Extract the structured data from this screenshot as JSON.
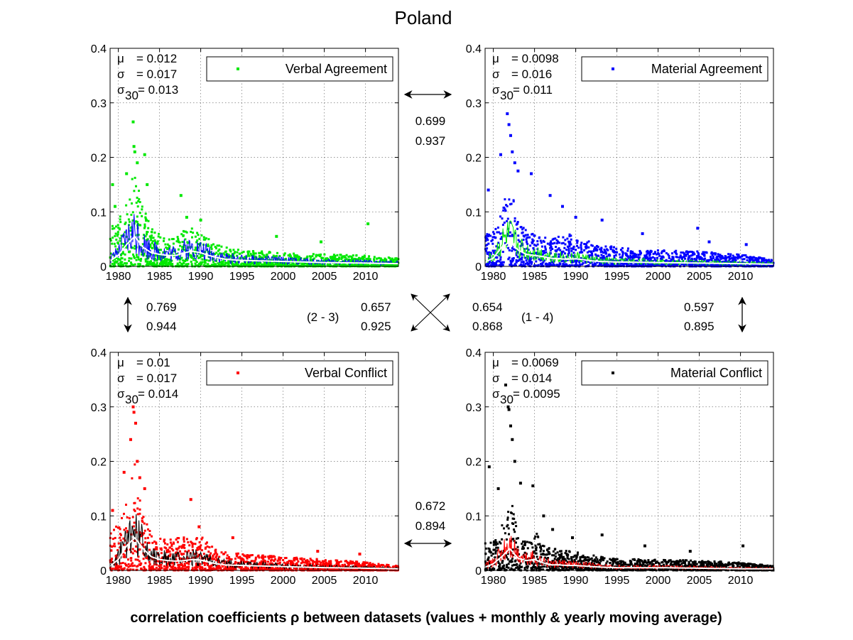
{
  "figure": {
    "title": "Poland",
    "xlabel": "correlation coefficients ρ between datasets (values + monthly & yearly moving average)"
  },
  "chart_data": [
    {
      "type": "scatter",
      "legend": "Verbal Agreement",
      "legend_position": "top-right",
      "color": "#00e800",
      "overlay_color": "#0000ff",
      "avg_color": "#ffffff",
      "stats": {
        "mu_label": "μ",
        "mu_value": "= 0.012",
        "sigma_label": "σ",
        "sigma_value": "= 0.017",
        "sigma30_label": "σ",
        "sigma30_sub": "30",
        "sigma30_value": "= 0.013"
      },
      "xlim": [
        1979,
        2014
      ],
      "ylim": [
        0,
        0.4
      ],
      "xticks": [
        "1980",
        "1985",
        "1990",
        "1995",
        "2000",
        "2005",
        "2010"
      ],
      "yticks": [
        "0",
        "0.1",
        "0.2",
        "0.3",
        "0.4"
      ],
      "grid": true,
      "envelope": [
        [
          1979,
          0.07
        ],
        [
          1980,
          0.085
        ],
        [
          1981,
          0.12
        ],
        [
          1982,
          0.19
        ],
        [
          1983,
          0.11
        ],
        [
          1984,
          0.07
        ],
        [
          1985,
          0.06
        ],
        [
          1986,
          0.05
        ],
        [
          1987,
          0.06
        ],
        [
          1988,
          0.065
        ],
        [
          1989,
          0.07
        ],
        [
          1990,
          0.06
        ],
        [
          1991,
          0.05
        ],
        [
          1992,
          0.04
        ],
        [
          1993,
          0.035
        ],
        [
          1995,
          0.03
        ],
        [
          2000,
          0.025
        ],
        [
          2005,
          0.022
        ],
        [
          2010,
          0.02
        ],
        [
          2014,
          0.015
        ]
      ],
      "moving_average": [
        [
          1979,
          0.01
        ],
        [
          1980,
          0.02
        ],
        [
          1981,
          0.04
        ],
        [
          1982,
          0.055
        ],
        [
          1983,
          0.035
        ],
        [
          1984,
          0.025
        ],
        [
          1985,
          0.022
        ],
        [
          1986,
          0.02
        ],
        [
          1987,
          0.02
        ],
        [
          1988,
          0.025
        ],
        [
          1989,
          0.028
        ],
        [
          1990,
          0.025
        ],
        [
          1991,
          0.02
        ],
        [
          1992,
          0.016
        ],
        [
          1993,
          0.013
        ],
        [
          1995,
          0.011
        ],
        [
          2000,
          0.009
        ],
        [
          2005,
          0.007
        ],
        [
          2010,
          0.006
        ],
        [
          2014,
          0.005
        ]
      ],
      "outliers": [
        [
          1979.3,
          0.15
        ],
        [
          1979.6,
          0.11
        ],
        [
          1981.0,
          0.17
        ],
        [
          1981.8,
          0.265
        ],
        [
          1981.9,
          0.22
        ],
        [
          1982.0,
          0.21
        ],
        [
          1982.3,
          0.19
        ],
        [
          1983.2,
          0.205
        ],
        [
          1983.5,
          0.15
        ],
        [
          1987.6,
          0.13
        ],
        [
          1988.3,
          0.09
        ],
        [
          1990.0,
          0.085
        ],
        [
          1999.2,
          0.055
        ],
        [
          2004.6,
          0.045
        ],
        [
          2010.3,
          0.078
        ]
      ]
    },
    {
      "type": "scatter",
      "legend": "Material Agreement",
      "legend_position": "top-right",
      "color": "#0000ff",
      "overlay_color": "#00e800",
      "avg_color": "#ffffff",
      "stats": {
        "mu_label": "μ",
        "mu_value": "= 0.0098",
        "sigma_label": "σ",
        "sigma_value": "= 0.016",
        "sigma30_label": "σ",
        "sigma30_sub": "30",
        "sigma30_value": "= 0.011"
      },
      "xlim": [
        1979,
        2014
      ],
      "ylim": [
        0,
        0.4
      ],
      "xticks": [
        "1980",
        "1985",
        "1990",
        "1995",
        "2000",
        "2005",
        "2010"
      ],
      "yticks": [
        "0",
        "0.1",
        "0.2",
        "0.3",
        "0.4"
      ],
      "grid": true,
      "envelope": [
        [
          1979,
          0.06
        ],
        [
          1980,
          0.075
        ],
        [
          1981,
          0.1
        ],
        [
          1982,
          0.17
        ],
        [
          1983,
          0.09
        ],
        [
          1984,
          0.065
        ],
        [
          1985,
          0.06
        ],
        [
          1986,
          0.055
        ],
        [
          1987,
          0.05
        ],
        [
          1988,
          0.055
        ],
        [
          1989,
          0.06
        ],
        [
          1990,
          0.055
        ],
        [
          1991,
          0.05
        ],
        [
          1992,
          0.045
        ],
        [
          1993,
          0.04
        ],
        [
          1995,
          0.035
        ],
        [
          2000,
          0.03
        ],
        [
          2005,
          0.028
        ],
        [
          2010,
          0.022
        ],
        [
          2014,
          0.012
        ]
      ],
      "moving_average": [
        [
          1979,
          0.008
        ],
        [
          1980,
          0.015
        ],
        [
          1981,
          0.035
        ],
        [
          1982,
          0.045
        ],
        [
          1983,
          0.03
        ],
        [
          1984,
          0.022
        ],
        [
          1985,
          0.02
        ],
        [
          1986,
          0.018
        ],
        [
          1987,
          0.015
        ],
        [
          1988,
          0.014
        ],
        [
          1989,
          0.013
        ],
        [
          1990,
          0.014
        ],
        [
          1991,
          0.012
        ],
        [
          1992,
          0.01
        ],
        [
          1993,
          0.009
        ],
        [
          1995,
          0.008
        ],
        [
          2000,
          0.007
        ],
        [
          2005,
          0.006
        ],
        [
          2010,
          0.005
        ],
        [
          2014,
          0.004
        ]
      ],
      "outliers": [
        [
          1979.4,
          0.14
        ],
        [
          1980.9,
          0.205
        ],
        [
          1981.7,
          0.28
        ],
        [
          1981.9,
          0.26
        ],
        [
          1982.1,
          0.24
        ],
        [
          1982.3,
          0.21
        ],
        [
          1982.6,
          0.19
        ],
        [
          1983.0,
          0.175
        ],
        [
          1984.6,
          0.17
        ],
        [
          1986.9,
          0.13
        ],
        [
          1988.4,
          0.11
        ],
        [
          1990.0,
          0.09
        ],
        [
          1993.2,
          0.085
        ],
        [
          1998.1,
          0.06
        ],
        [
          2004.8,
          0.07
        ],
        [
          2006.2,
          0.045
        ],
        [
          2010.7,
          0.04
        ]
      ]
    },
    {
      "type": "scatter",
      "legend": "Verbal Conflict",
      "legend_position": "top-right",
      "color": "#ff0000",
      "overlay_color": "#000000",
      "avg_color": "#ffffff",
      "stats": {
        "mu_label": "μ",
        "mu_value": "= 0.01",
        "sigma_label": "σ",
        "sigma_value": "= 0.017",
        "sigma30_label": "σ",
        "sigma30_sub": "30",
        "sigma30_value": "= 0.014"
      },
      "xlim": [
        1979,
        2014
      ],
      "ylim": [
        0,
        0.4
      ],
      "xticks": [
        "1980",
        "1985",
        "1990",
        "1995",
        "2000",
        "2005",
        "2010"
      ],
      "yticks": [
        "0",
        "0.1",
        "0.2",
        "0.3",
        "0.4"
      ],
      "grid": true,
      "envelope": [
        [
          1979,
          0.07
        ],
        [
          1980,
          0.09
        ],
        [
          1981,
          0.15
        ],
        [
          1982,
          0.2
        ],
        [
          1983,
          0.1
        ],
        [
          1984,
          0.07
        ],
        [
          1985,
          0.06
        ],
        [
          1986,
          0.055
        ],
        [
          1987,
          0.06
        ],
        [
          1988,
          0.065
        ],
        [
          1989,
          0.075
        ],
        [
          1990,
          0.065
        ],
        [
          1991,
          0.05
        ],
        [
          1992,
          0.04
        ],
        [
          1993,
          0.035
        ],
        [
          1995,
          0.03
        ],
        [
          2000,
          0.025
        ],
        [
          2005,
          0.02
        ],
        [
          2010,
          0.015
        ],
        [
          2014,
          0.008
        ]
      ],
      "moving_average": [
        [
          1979,
          0.008
        ],
        [
          1980,
          0.02
        ],
        [
          1981,
          0.045
        ],
        [
          1982,
          0.06
        ],
        [
          1983,
          0.04
        ],
        [
          1984,
          0.025
        ],
        [
          1985,
          0.02
        ],
        [
          1986,
          0.018
        ],
        [
          1987,
          0.017
        ],
        [
          1988,
          0.018
        ],
        [
          1989,
          0.02
        ],
        [
          1990,
          0.019
        ],
        [
          1991,
          0.015
        ],
        [
          1992,
          0.012
        ],
        [
          1993,
          0.01
        ],
        [
          1995,
          0.009
        ],
        [
          2000,
          0.007
        ],
        [
          2005,
          0.005
        ],
        [
          2010,
          0.004
        ],
        [
          2014,
          0.003
        ]
      ],
      "outliers": [
        [
          1979.3,
          0.11
        ],
        [
          1980.7,
          0.18
        ],
        [
          1981.5,
          0.24
        ],
        [
          1981.8,
          0.3
        ],
        [
          1981.9,
          0.29
        ],
        [
          1982.1,
          0.27
        ],
        [
          1982.3,
          0.2
        ],
        [
          1982.6,
          0.17
        ],
        [
          1983.2,
          0.15
        ],
        [
          1988.8,
          0.13
        ],
        [
          1989.8,
          0.08
        ],
        [
          1993.9,
          0.06
        ],
        [
          2004.2,
          0.035
        ],
        [
          2009.3,
          0.03
        ]
      ]
    },
    {
      "type": "scatter",
      "legend": "Material Conflict",
      "legend_position": "top-right",
      "color": "#000000",
      "overlay_color": "#ff0000",
      "avg_color": "#ffffff",
      "stats": {
        "mu_label": "μ",
        "mu_value": "= 0.0069",
        "sigma_label": "σ",
        "sigma_value": "= 0.014",
        "sigma30_label": "σ",
        "sigma30_sub": "30",
        "sigma30_value": "= 0.0095"
      },
      "xlim": [
        1979,
        2014
      ],
      "ylim": [
        0,
        0.4
      ],
      "xticks": [
        "1980",
        "1985",
        "1990",
        "1995",
        "2000",
        "2005",
        "2010"
      ],
      "yticks": [
        "0",
        "0.1",
        "0.2",
        "0.3",
        "0.4"
      ],
      "grid": true,
      "envelope": [
        [
          1979,
          0.05
        ],
        [
          1980,
          0.06
        ],
        [
          1981,
          0.08
        ],
        [
          1982,
          0.14
        ],
        [
          1983,
          0.07
        ],
        [
          1984,
          0.05
        ],
        [
          1985,
          0.075
        ],
        [
          1986,
          0.05
        ],
        [
          1987,
          0.04
        ],
        [
          1988,
          0.04
        ],
        [
          1989,
          0.035
        ],
        [
          1990,
          0.035
        ],
        [
          1991,
          0.03
        ],
        [
          1992,
          0.028
        ],
        [
          1993,
          0.025
        ],
        [
          1995,
          0.022
        ],
        [
          2000,
          0.02
        ],
        [
          2005,
          0.018
        ],
        [
          2010,
          0.015
        ],
        [
          2014,
          0.008
        ]
      ],
      "moving_average": [
        [
          1979,
          0.006
        ],
        [
          1980,
          0.012
        ],
        [
          1981,
          0.025
        ],
        [
          1982,
          0.04
        ],
        [
          1983,
          0.022
        ],
        [
          1984,
          0.018
        ],
        [
          1985,
          0.02
        ],
        [
          1986,
          0.014
        ],
        [
          1987,
          0.01
        ],
        [
          1988,
          0.01
        ],
        [
          1989,
          0.009
        ],
        [
          1990,
          0.009
        ],
        [
          1991,
          0.008
        ],
        [
          1992,
          0.007
        ],
        [
          1993,
          0.006
        ],
        [
          1995,
          0.005
        ],
        [
          2000,
          0.005
        ],
        [
          2005,
          0.004
        ],
        [
          2010,
          0.003
        ],
        [
          2014,
          0.003
        ]
      ],
      "outliers": [
        [
          1979.5,
          0.19
        ],
        [
          1980.6,
          0.15
        ],
        [
          1981.5,
          0.34
        ],
        [
          1981.8,
          0.3
        ],
        [
          1981.9,
          0.295
        ],
        [
          1982.1,
          0.265
        ],
        [
          1982.3,
          0.24
        ],
        [
          1982.6,
          0.2
        ],
        [
          1983.3,
          0.16
        ],
        [
          1984.8,
          0.155
        ],
        [
          1986.1,
          0.1
        ],
        [
          1987.2,
          0.075
        ],
        [
          1989.6,
          0.06
        ],
        [
          1993.2,
          0.065
        ],
        [
          1998.4,
          0.045
        ],
        [
          2003.9,
          0.035
        ],
        [
          2010.3,
          0.045
        ]
      ]
    }
  ],
  "correlations": {
    "top": {
      "v1": "0.699",
      "v2": "0.937"
    },
    "bottom": {
      "v1": "0.672",
      "v2": "0.894"
    },
    "left": {
      "v1": "0.769",
      "v2": "0.944"
    },
    "right": {
      "v1": "0.597",
      "v2": "0.895"
    },
    "diag_23": {
      "tag": "(2 - 3)",
      "v1": "0.657",
      "v2": "0.925"
    },
    "diag_14": {
      "tag": "(1 - 4)",
      "v1": "0.654",
      "v2": "0.868"
    }
  }
}
